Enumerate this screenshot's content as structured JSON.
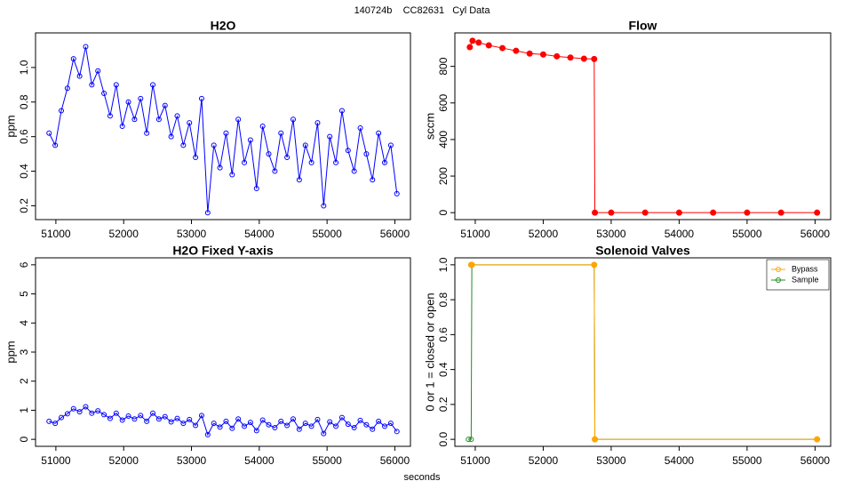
{
  "title": "140724b    CC82631   Cyl Data",
  "x_label": "seconds",
  "chart_data": [
    {
      "type": "line",
      "title": "H2O",
      "y_label": "ppm",
      "marker": "open circle",
      "color": "#0000ff",
      "x": [
        50900,
        50990,
        51080,
        51170,
        51260,
        51350,
        51440,
        51530,
        51620,
        51710,
        51800,
        51890,
        51980,
        52070,
        52160,
        52250,
        52340,
        52430,
        52520,
        52610,
        52700,
        52790,
        52880,
        52970,
        53060,
        53150,
        53240,
        53330,
        53420,
        53510,
        53600,
        53690,
        53780,
        53870,
        53960,
        54050,
        54140,
        54230,
        54320,
        54410,
        54500,
        54590,
        54680,
        54770,
        54860,
        54950,
        55040,
        55130,
        55220,
        55310,
        55400,
        55490,
        55580,
        55670,
        55760,
        55850,
        55940,
        56030
      ],
      "values": [
        0.62,
        0.55,
        0.75,
        0.88,
        1.05,
        0.95,
        1.12,
        0.9,
        0.98,
        0.85,
        0.72,
        0.9,
        0.66,
        0.8,
        0.7,
        0.82,
        0.62,
        0.9,
        0.7,
        0.78,
        0.6,
        0.72,
        0.55,
        0.68,
        0.48,
        0.82,
        0.16,
        0.55,
        0.42,
        0.62,
        0.38,
        0.7,
        0.45,
        0.58,
        0.3,
        0.66,
        0.5,
        0.4,
        0.62,
        0.48,
        0.7,
        0.35,
        0.55,
        0.45,
        0.68,
        0.2,
        0.6,
        0.45,
        0.75,
        0.52,
        0.4,
        0.65,
        0.5,
        0.35,
        0.62,
        0.45,
        0.55,
        0.27
      ],
      "xlim": [
        50700,
        56230
      ],
      "xticks": [
        51000,
        52000,
        53000,
        54000,
        55000,
        56000
      ],
      "ylim": [
        0.12,
        1.2
      ],
      "yticks": [
        0.2,
        0.4,
        0.6,
        0.8,
        {
          "value": 1,
          "label": "1.0"
        }
      ]
    },
    {
      "type": "line",
      "title": "Flow",
      "y_label": "sccm",
      "marker": "filled circle",
      "color": "#ff0000",
      "x": [
        50920,
        50960,
        51050,
        51200,
        51400,
        51600,
        51800,
        52000,
        52200,
        52400,
        52600,
        52750,
        52760,
        53000,
        53500,
        54000,
        54500,
        55000,
        55500,
        56030
      ],
      "values": [
        905,
        940,
        930,
        915,
        900,
        885,
        870,
        865,
        855,
        848,
        842,
        840,
        0,
        0,
        0,
        0,
        0,
        0,
        0,
        0
      ],
      "xlim": [
        50700,
        56230
      ],
      "xticks": [
        51000,
        52000,
        53000,
        54000,
        55000,
        56000
      ],
      "ylim": [
        -38,
        983
      ],
      "yticks": [
        0,
        200,
        400,
        600,
        800
      ]
    },
    {
      "type": "line",
      "title": "H2O Fixed Y-axis",
      "y_label": "ppm",
      "marker": "open circle",
      "color": "#0000ff",
      "x": [
        50900,
        50990,
        51080,
        51170,
        51260,
        51350,
        51440,
        51530,
        51620,
        51710,
        51800,
        51890,
        51980,
        52070,
        52160,
        52250,
        52340,
        52430,
        52520,
        52610,
        52700,
        52790,
        52880,
        52970,
        53060,
        53150,
        53240,
        53330,
        53420,
        53510,
        53600,
        53690,
        53780,
        53870,
        53960,
        54050,
        54140,
        54230,
        54320,
        54410,
        54500,
        54590,
        54680,
        54770,
        54860,
        54950,
        55040,
        55130,
        55220,
        55310,
        55400,
        55490,
        55580,
        55670,
        55760,
        55850,
        55940,
        56030
      ],
      "values": [
        0.62,
        0.55,
        0.75,
        0.88,
        1.05,
        0.95,
        1.12,
        0.9,
        0.98,
        0.85,
        0.72,
        0.9,
        0.66,
        0.8,
        0.7,
        0.82,
        0.62,
        0.9,
        0.7,
        0.78,
        0.6,
        0.72,
        0.55,
        0.68,
        0.48,
        0.82,
        0.16,
        0.55,
        0.42,
        0.62,
        0.38,
        0.7,
        0.45,
        0.58,
        0.3,
        0.66,
        0.5,
        0.4,
        0.62,
        0.48,
        0.7,
        0.35,
        0.55,
        0.45,
        0.68,
        0.2,
        0.6,
        0.45,
        0.75,
        0.52,
        0.4,
        0.65,
        0.5,
        0.35,
        0.62,
        0.45,
        0.55,
        0.27
      ],
      "xlim": [
        50700,
        56230
      ],
      "xticks": [
        51000,
        52000,
        53000,
        54000,
        55000,
        56000
      ],
      "ylim": [
        -0.24,
        6.24
      ],
      "yticks": [
        0,
        1,
        2,
        3,
        4,
        5,
        6
      ]
    },
    {
      "type": "line",
      "title": "Solenoid Valves",
      "y_label": "0 or 1 = closed or open",
      "legend": "top-right",
      "x": [
        50900,
        50940,
        50950,
        52750,
        52760,
        56030
      ],
      "series": [
        {
          "name": "Bypass",
          "color": "#ffa500",
          "marker": "filled circle",
          "values": [
            null,
            1,
            1,
            1,
            0,
            0
          ]
        },
        {
          "name": "Sample",
          "color": "#228b22",
          "marker": "open circle",
          "values": [
            0,
            0,
            1,
            1,
            0,
            0
          ]
        }
      ],
      "xlim": [
        50700,
        56230
      ],
      "xticks": [
        51000,
        52000,
        53000,
        54000,
        55000,
        56000
      ],
      "ylim": [
        -0.04,
        1.04
      ],
      "yticks": [
        {
          "value": 0,
          "label": "0.0"
        },
        0.2,
        0.4,
        0.6,
        0.8,
        {
          "value": 1,
          "label": "1.0"
        }
      ]
    }
  ]
}
